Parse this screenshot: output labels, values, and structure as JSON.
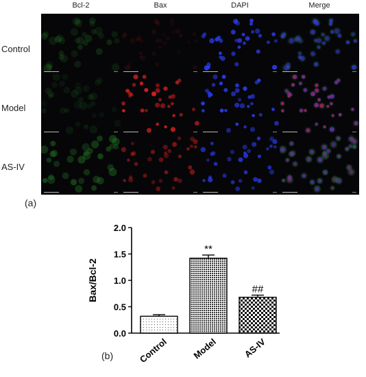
{
  "figure_a": {
    "tag": "(a)",
    "columns": [
      "Bcl-2",
      "Bax",
      "DAPI",
      "Merge"
    ],
    "rows": [
      "Control",
      "Model",
      "AS-IV"
    ],
    "channel_colors": {
      "Bcl-2": "#2a8a2a",
      "Bax": "#d82020",
      "DAPI": "#2a3cf0"
    }
  },
  "figure_b": {
    "tag": "(b)"
  },
  "chart_data": {
    "type": "bar",
    "categories": [
      "Control",
      "Model",
      "AS-IV"
    ],
    "values": [
      0.32,
      1.42,
      0.68
    ],
    "errors": [
      0.03,
      0.06,
      0.04
    ],
    "significance": [
      "",
      "**",
      "##"
    ],
    "ylabel": "Bax/Bcl-2",
    "xlabel": "",
    "ylim": [
      0,
      2.0
    ],
    "yticks": [
      "0.0",
      "0.5",
      "1.0",
      "1.5",
      "2.0"
    ],
    "bar_patterns": [
      "sparse-dots",
      "dense-dots",
      "checker"
    ]
  }
}
